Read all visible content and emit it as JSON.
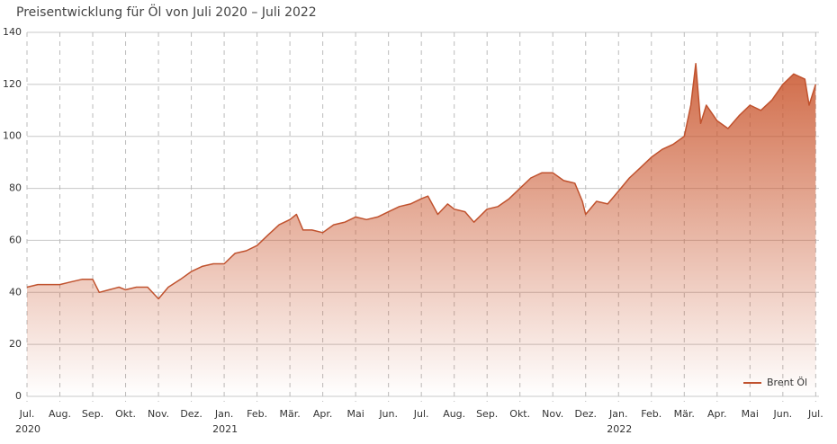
{
  "chart_data": {
    "type": "area",
    "title": "Preisentwicklung für Öl von Juli 2020 – Juli 2022",
    "xlim": [
      0,
      24.1
    ],
    "xticks": [
      {
        "value": 0,
        "label": "Jul."
      },
      {
        "value": 1,
        "label": "Aug."
      },
      {
        "value": 2,
        "label": "Sep."
      },
      {
        "value": 3,
        "label": "Okt."
      },
      {
        "value": 4,
        "label": "Nov."
      },
      {
        "value": 5,
        "label": "Dez."
      },
      {
        "value": 6,
        "label": "Jan."
      },
      {
        "value": 7,
        "label": "Feb."
      },
      {
        "value": 8,
        "label": "Mär."
      },
      {
        "value": 9,
        "label": "Apr."
      },
      {
        "value": 10,
        "label": "Mai"
      },
      {
        "value": 11,
        "label": "Jun."
      },
      {
        "value": 12,
        "label": "Jul."
      },
      {
        "value": 13,
        "label": "Aug."
      },
      {
        "value": 14,
        "label": "Sep."
      },
      {
        "value": 15,
        "label": "Okt."
      },
      {
        "value": 16,
        "label": "Nov."
      },
      {
        "value": 17,
        "label": "Dez."
      },
      {
        "value": 18,
        "label": "Jan."
      },
      {
        "value": 19,
        "label": "Feb."
      },
      {
        "value": 20,
        "label": "Mär."
      },
      {
        "value": 21,
        "label": "Apr."
      },
      {
        "value": 22,
        "label": "Mai"
      },
      {
        "value": 23,
        "label": "Jun."
      },
      {
        "value": 24,
        "label": "Jul."
      }
    ],
    "year_labels": [
      {
        "value": 0,
        "label": "2020"
      },
      {
        "value": 6,
        "label": "2021"
      },
      {
        "value": 18,
        "label": "2022"
      }
    ],
    "ylim": [
      0,
      140
    ],
    "yticks": [
      0,
      20,
      40,
      60,
      80,
      100,
      120,
      140
    ],
    "grid": true,
    "legend": "bottom-right",
    "series": [
      {
        "name": "Brent Öl",
        "color": "#c0522e",
        "x": [
          0,
          0.33,
          0.67,
          1,
          1.33,
          1.67,
          2,
          2.2,
          2.5,
          2.8,
          3,
          3.33,
          3.67,
          4,
          4.3,
          4.67,
          5,
          5.33,
          5.67,
          6,
          6.33,
          6.67,
          7,
          7.33,
          7.67,
          8,
          8.2,
          8.4,
          8.67,
          9,
          9.33,
          9.67,
          10,
          10.33,
          10.67,
          11,
          11.33,
          11.67,
          12,
          12.2,
          12.5,
          12.8,
          13,
          13.33,
          13.6,
          14,
          14.33,
          14.67,
          15,
          15.33,
          15.67,
          16,
          16.33,
          16.67,
          16.9,
          17,
          17.33,
          17.67,
          18,
          18.33,
          18.67,
          19,
          19.33,
          19.67,
          20,
          20.2,
          20.35,
          20.5,
          20.67,
          21,
          21.33,
          21.67,
          22,
          22.33,
          22.67,
          23,
          23.33,
          23.67,
          23.8,
          24
        ],
        "values": [
          42,
          43,
          43,
          43,
          44,
          45,
          45,
          40,
          41,
          42,
          41,
          42,
          42,
          37.5,
          42,
          45,
          48,
          50,
          51,
          51,
          55,
          56,
          58,
          62,
          66,
          68,
          70,
          64,
          64,
          63,
          66,
          67,
          69,
          68,
          69,
          71,
          73,
          74,
          76,
          77,
          70,
          74,
          72,
          71,
          67,
          72,
          73,
          76,
          80,
          84,
          86,
          86,
          83,
          82,
          75,
          70,
          75,
          74,
          79,
          84,
          88,
          92,
          95,
          97,
          100,
          112,
          128,
          105,
          112,
          106,
          103,
          108,
          112,
          110,
          114,
          120,
          124,
          122,
          112,
          120
        ]
      }
    ]
  }
}
